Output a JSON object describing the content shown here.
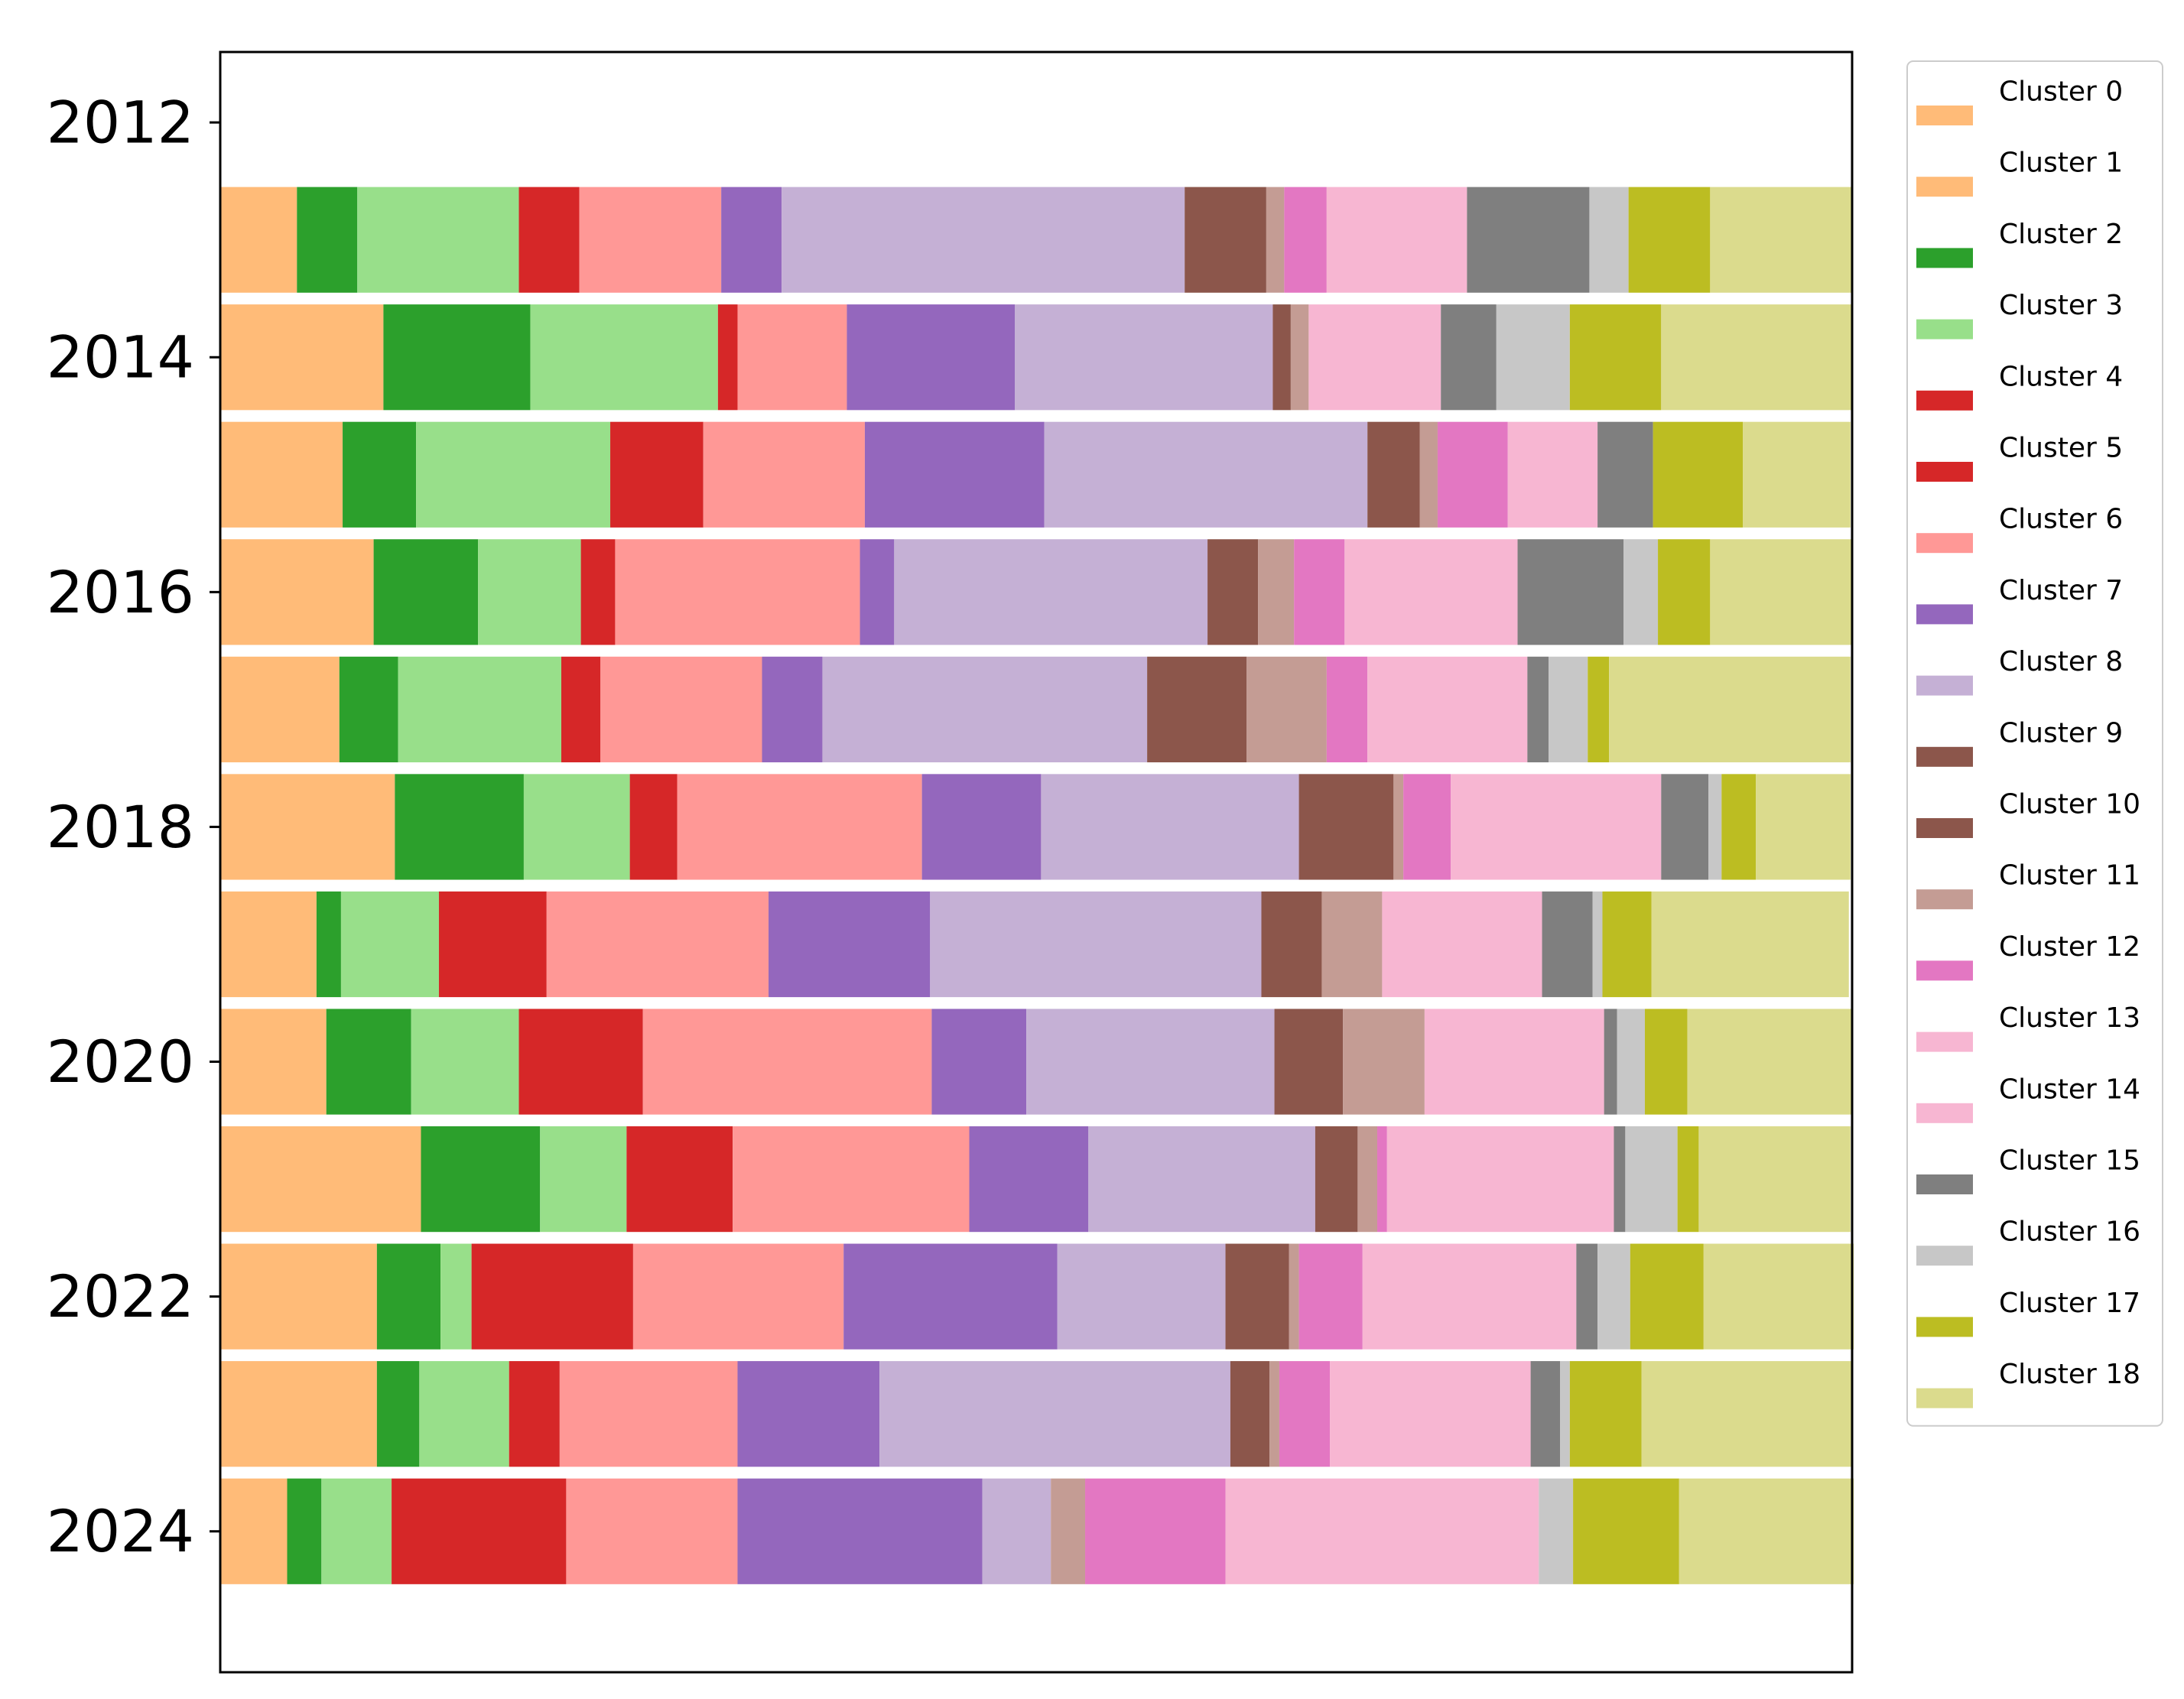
{
  "chart_data": {
    "type": "bar",
    "orientation": "horizontal",
    "stacked": true,
    "normalized": true,
    "title": "",
    "xlabel": "",
    "ylabel": "",
    "xlim": [
      0,
      1
    ],
    "ylim": [
      2011.4,
      2025.2
    ],
    "y_ticks": [
      2012,
      2014,
      2016,
      2018,
      2020,
      2022,
      2024
    ],
    "y_tick_labels": [
      "2012",
      "2014",
      "2016",
      "2018",
      "2020",
      "2022",
      "2024"
    ],
    "categories": [
      2013,
      2014,
      2015,
      2016,
      2017,
      2018,
      2019,
      2020,
      2021,
      2022,
      2023,
      2024
    ],
    "legend_position": "outside-right",
    "series": [
      {
        "name": "Cluster 0",
        "color": "#ffbb78",
        "values": [
          0.047,
          0.1,
          0.075,
          0.094,
          0.073,
          0.107,
          0.059,
          0.065,
          0.123,
          0.096,
          0.096,
          0.041
        ]
      },
      {
        "name": "Cluster 1",
        "color": "#ffbb78",
        "values": [
          0,
          0,
          0,
          0,
          0,
          0,
          0,
          0,
          0,
          0,
          0,
          0
        ]
      },
      {
        "name": "Cluster 2",
        "color": "#2ca02c",
        "values": [
          0.037,
          0.09,
          0.045,
          0.064,
          0.036,
          0.079,
          0.015,
          0.052,
          0.073,
          0.039,
          0.026,
          0.021
        ]
      },
      {
        "name": "Cluster 3",
        "color": "#98df8a",
        "values": [
          0.099,
          0.115,
          0.119,
          0.063,
          0.1,
          0.065,
          0.06,
          0.066,
          0.053,
          0.019,
          0.055,
          0.043
        ]
      },
      {
        "name": "Cluster 4",
        "color": "#d62728",
        "values": [
          0.037,
          0.012,
          0.057,
          0.021,
          0.024,
          0.029,
          0.066,
          0.076,
          0.065,
          0.099,
          0.031,
          0.107
        ]
      },
      {
        "name": "Cluster 5",
        "color": "#d62728",
        "values": [
          0,
          0,
          0,
          0,
          0,
          0,
          0,
          0,
          0,
          0,
          0,
          0
        ]
      },
      {
        "name": "Cluster 6",
        "color": "#ff9896",
        "values": [
          0.087,
          0.067,
          0.099,
          0.15,
          0.099,
          0.15,
          0.136,
          0.177,
          0.145,
          0.129,
          0.109,
          0.105
        ]
      },
      {
        "name": "Cluster 7",
        "color": "#9467bd",
        "values": [
          0.037,
          0.103,
          0.11,
          0.021,
          0.037,
          0.073,
          0.099,
          0.058,
          0.073,
          0.131,
          0.087,
          0.15
        ]
      },
      {
        "name": "Cluster 8",
        "color": "#c5b0d5",
        "values": [
          0.247,
          0.158,
          0.198,
          0.192,
          0.199,
          0.158,
          0.203,
          0.152,
          0.139,
          0.103,
          0.215,
          0.042
        ]
      },
      {
        "name": "Cluster 9",
        "color": "#8c564b",
        "values": [
          0.05,
          0.011,
          0.032,
          0.031,
          0.061,
          0.058,
          0.037,
          0.042,
          0.026,
          0.039,
          0.024,
          0
        ]
      },
      {
        "name": "Cluster 10",
        "color": "#8c564b",
        "values": [
          0,
          0,
          0,
          0,
          0,
          0,
          0,
          0,
          0,
          0,
          0,
          0
        ]
      },
      {
        "name": "Cluster 11",
        "color": "#c49c94",
        "values": [
          0.011,
          0.011,
          0.011,
          0.022,
          0.049,
          0.006,
          0.037,
          0.05,
          0.012,
          0.006,
          0.006,
          0.021
        ]
      },
      {
        "name": "Cluster 12",
        "color": "#e377c2",
        "values": [
          0.026,
          0,
          0.043,
          0.031,
          0.025,
          0.029,
          0,
          0,
          0.006,
          0.039,
          0.031,
          0.086
        ]
      },
      {
        "name": "Cluster 13",
        "color": "#f7b6d2",
        "values": [
          0.086,
          0.081,
          0.055,
          0.106,
          0.098,
          0.129,
          0.098,
          0.11,
          0.139,
          0.131,
          0.123,
          0.192
        ]
      },
      {
        "name": "Cluster 14",
        "color": "#f7b6d2",
        "values": [
          0,
          0,
          0,
          0,
          0,
          0,
          0,
          0,
          0,
          0,
          0,
          0
        ]
      },
      {
        "name": "Cluster 15",
        "color": "#7f7f7f",
        "values": [
          0.075,
          0.034,
          0.034,
          0.065,
          0.013,
          0.029,
          0.031,
          0.008,
          0.007,
          0.013,
          0.018,
          0
        ]
      },
      {
        "name": "Cluster 16",
        "color": "#c7c7c7",
        "values": [
          0.024,
          0.045,
          0,
          0.021,
          0.024,
          0.008,
          0.006,
          0.017,
          0.032,
          0.02,
          0.006,
          0.021
        ]
      },
      {
        "name": "Cluster 17",
        "color": "#bcbd22",
        "values": [
          0.05,
          0.056,
          0.055,
          0.032,
          0.013,
          0.021,
          0.03,
          0.026,
          0.013,
          0.045,
          0.044,
          0.065
        ]
      },
      {
        "name": "Cluster 18",
        "color": "#dbdb8d",
        "values": [
          0.087,
          0.117,
          0.066,
          0.087,
          0.148,
          0.058,
          0.121,
          0.101,
          0.093,
          0.092,
          0.129,
          0.107
        ]
      }
    ]
  }
}
